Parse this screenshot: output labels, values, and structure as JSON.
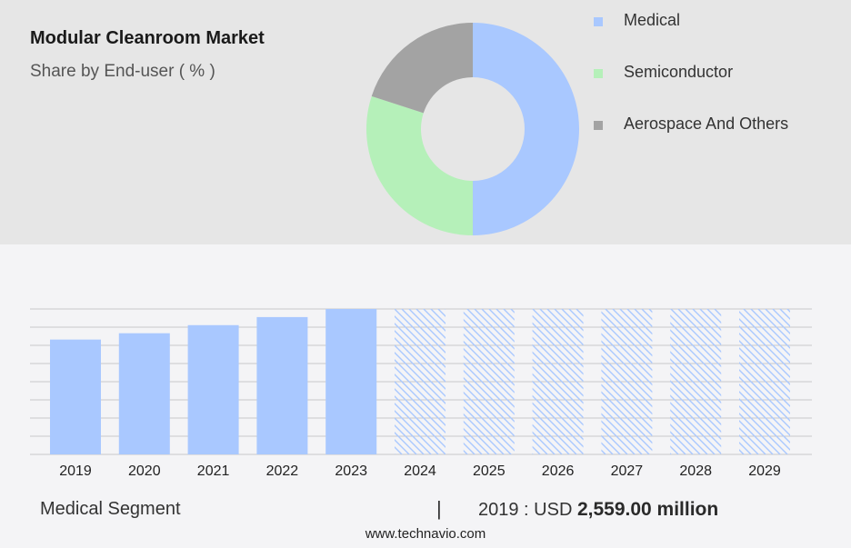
{
  "header": {
    "title": "Modular Cleanroom Market",
    "subtitle": "Share by End-user ( % )"
  },
  "colors": {
    "medical": "#a9c8ff",
    "semiconductor": "#b5f0b9",
    "aerospace": "#a3a3a3",
    "bar": "#a9c8ff",
    "forecast_hatch": "#a9c8ff",
    "grid": "#c9c9c9"
  },
  "legend": {
    "items": [
      {
        "label": "Medical",
        "color": "#a9c8ff"
      },
      {
        "label": "Semiconductor",
        "color": "#b5f0b9"
      },
      {
        "label": "Aerospace And Others",
        "color": "#a3a3a3"
      }
    ]
  },
  "footer": {
    "segment_label": "Medical Segment",
    "separator": "|",
    "year_prefix": "2019 : USD",
    "amount": "2,559.00 million",
    "website": "www.technavio.com"
  },
  "chart_data": [
    {
      "type": "pie",
      "donut": true,
      "title": "Share by End-user ( % )",
      "labels": [
        "Medical",
        "Semiconductor",
        "Aerospace And Others"
      ],
      "values": [
        50,
        30,
        20
      ],
      "colors": [
        "#a9c8ff",
        "#b5f0b9",
        "#a3a3a3"
      ]
    },
    {
      "type": "bar",
      "categories": [
        "2019",
        "2020",
        "2021",
        "2022",
        "2023",
        "2024",
        "2025",
        "2026",
        "2027",
        "2028",
        "2029"
      ],
      "values": [
        2559,
        2700,
        2880,
        3060,
        3240,
        null,
        null,
        null,
        null,
        null,
        null
      ],
      "forecast_categories": [
        "2024",
        "2025",
        "2026",
        "2027",
        "2028",
        "2029"
      ],
      "grid": true,
      "ylim": [
        0,
        3240
      ]
    }
  ]
}
